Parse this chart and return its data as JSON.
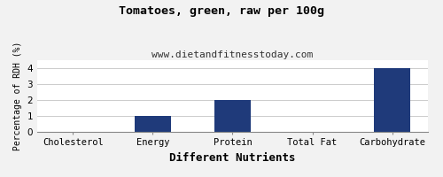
{
  "title": "Tomatoes, green, raw per 100g",
  "subtitle": "www.dietandfitnesstoday.com",
  "xlabel": "Different Nutrients",
  "ylabel": "Percentage of RDH (%)",
  "categories": [
    "Cholesterol",
    "Energy",
    "Protein",
    "Total Fat",
    "Carbohydrate"
  ],
  "values": [
    0,
    1.0,
    2.0,
    0,
    4.0
  ],
  "bar_color": "#1f3a7a",
  "ylim": [
    0,
    4.5
  ],
  "yticks": [
    0.0,
    1.0,
    2.0,
    3.0,
    4.0
  ],
  "background_color": "#f2f2f2",
  "plot_bg_color": "#ffffff",
  "title_fontsize": 9.5,
  "subtitle_fontsize": 8,
  "xlabel_fontsize": 9,
  "ylabel_fontsize": 7,
  "tick_fontsize": 7.5
}
